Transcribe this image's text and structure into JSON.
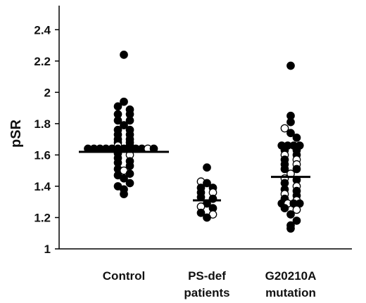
{
  "chart_data": {
    "type": "scatter",
    "title": "",
    "xlabel": "",
    "ylabel": "pSR",
    "ylim": [
      1,
      2.5
    ],
    "yticks": [
      "1",
      "1.2",
      "1.4",
      "1.6",
      "1.8",
      "2",
      "2.2",
      "2.4"
    ],
    "grid": false,
    "legend": "none",
    "groups": [
      {
        "label_lines": [
          "Control"
        ],
        "mean": 1.62,
        "points": [
          {
            "y": 2.24,
            "filled": true,
            "dx": 0
          },
          {
            "y": 1.94,
            "filled": true,
            "dx": 0
          },
          {
            "y": 1.91,
            "filled": true,
            "dx": -1
          },
          {
            "y": 1.89,
            "filled": true,
            "dx": 1
          },
          {
            "y": 1.86,
            "filled": true,
            "dx": -1
          },
          {
            "y": 1.86,
            "filled": true,
            "dx": 1
          },
          {
            "y": 1.82,
            "filled": true,
            "dx": -1
          },
          {
            "y": 1.82,
            "filled": true,
            "dx": 1
          },
          {
            "y": 1.79,
            "filled": true,
            "dx": 0
          },
          {
            "y": 1.76,
            "filled": true,
            "dx": -1
          },
          {
            "y": 1.76,
            "filled": true,
            "dx": 1
          },
          {
            "y": 1.73,
            "filled": true,
            "dx": -1
          },
          {
            "y": 1.73,
            "filled": true,
            "dx": 1
          },
          {
            "y": 1.7,
            "filled": true,
            "dx": -1
          },
          {
            "y": 1.7,
            "filled": true,
            "dx": 1
          },
          {
            "y": 1.68,
            "filled": true,
            "dx": -1
          },
          {
            "y": 1.68,
            "filled": true,
            "dx": 1
          },
          {
            "y": 1.66,
            "filled": false,
            "dx": -1
          },
          {
            "y": 1.66,
            "filled": true,
            "dx": 1
          },
          {
            "y": 1.64,
            "filled": true,
            "dx": -6
          },
          {
            "y": 1.64,
            "filled": true,
            "dx": -5
          },
          {
            "y": 1.64,
            "filled": true,
            "dx": -4
          },
          {
            "y": 1.64,
            "filled": true,
            "dx": -3
          },
          {
            "y": 1.64,
            "filled": true,
            "dx": -2
          },
          {
            "y": 1.64,
            "filled": true,
            "dx": -1
          },
          {
            "y": 1.64,
            "filled": true,
            "dx": 0
          },
          {
            "y": 1.64,
            "filled": true,
            "dx": 1
          },
          {
            "y": 1.64,
            "filled": true,
            "dx": 2
          },
          {
            "y": 1.64,
            "filled": true,
            "dx": 3
          },
          {
            "y": 1.64,
            "filled": false,
            "dx": 4
          },
          {
            "y": 1.64,
            "filled": true,
            "dx": 5
          },
          {
            "y": 1.61,
            "filled": true,
            "dx": -1
          },
          {
            "y": 1.6,
            "filled": false,
            "dx": 1
          },
          {
            "y": 1.58,
            "filled": true,
            "dx": -1
          },
          {
            "y": 1.56,
            "filled": true,
            "dx": 1
          },
          {
            "y": 1.55,
            "filled": true,
            "dx": -1
          },
          {
            "y": 1.53,
            "filled": true,
            "dx": 1
          },
          {
            "y": 1.51,
            "filled": true,
            "dx": -1
          },
          {
            "y": 1.5,
            "filled": false,
            "dx": 0
          },
          {
            "y": 1.48,
            "filled": true,
            "dx": 1
          },
          {
            "y": 1.47,
            "filled": true,
            "dx": -1
          },
          {
            "y": 1.45,
            "filled": true,
            "dx": 0
          },
          {
            "y": 1.42,
            "filled": true,
            "dx": 1
          },
          {
            "y": 1.4,
            "filled": true,
            "dx": -1
          },
          {
            "y": 1.38,
            "filled": true,
            "dx": 0
          },
          {
            "y": 1.35,
            "filled": true,
            "dx": 0
          }
        ]
      },
      {
        "label_lines": [
          "PS-def",
          "patients"
        ],
        "mean": 1.31,
        "points": [
          {
            "y": 1.52,
            "filled": true,
            "dx": 0
          },
          {
            "y": 1.43,
            "filled": false,
            "dx": -1
          },
          {
            "y": 1.42,
            "filled": true,
            "dx": 0
          },
          {
            "y": 1.39,
            "filled": true,
            "dx": -1
          },
          {
            "y": 1.39,
            "filled": true,
            "dx": 1
          },
          {
            "y": 1.36,
            "filled": true,
            "dx": -1
          },
          {
            "y": 1.36,
            "filled": false,
            "dx": 1
          },
          {
            "y": 1.33,
            "filled": true,
            "dx": -1
          },
          {
            "y": 1.32,
            "filled": true,
            "dx": 1
          },
          {
            "y": 1.29,
            "filled": true,
            "dx": 0
          },
          {
            "y": 1.27,
            "filled": false,
            "dx": -1
          },
          {
            "y": 1.26,
            "filled": true,
            "dx": 1
          },
          {
            "y": 1.23,
            "filled": true,
            "dx": -1
          },
          {
            "y": 1.22,
            "filled": false,
            "dx": 1
          },
          {
            "y": 1.2,
            "filled": true,
            "dx": 0
          }
        ]
      },
      {
        "label_lines": [
          "G20210A",
          "mutation"
        ],
        "mean": 1.46,
        "points": [
          {
            "y": 2.17,
            "filled": true,
            "dx": 0
          },
          {
            "y": 1.85,
            "filled": true,
            "dx": 0
          },
          {
            "y": 1.81,
            "filled": true,
            "dx": 0
          },
          {
            "y": 1.77,
            "filled": false,
            "dx": -1
          },
          {
            "y": 1.74,
            "filled": true,
            "dx": 0
          },
          {
            "y": 1.71,
            "filled": true,
            "dx": 1
          },
          {
            "y": 1.66,
            "filled": true,
            "dx": -1.5
          },
          {
            "y": 1.66,
            "filled": true,
            "dx": -0.5
          },
          {
            "y": 1.66,
            "filled": true,
            "dx": 0.5
          },
          {
            "y": 1.66,
            "filled": true,
            "dx": 1.5
          },
          {
            "y": 1.63,
            "filled": true,
            "dx": -1
          },
          {
            "y": 1.63,
            "filled": true,
            "dx": 1
          },
          {
            "y": 1.6,
            "filled": false,
            "dx": -1
          },
          {
            "y": 1.6,
            "filled": true,
            "dx": 1
          },
          {
            "y": 1.57,
            "filled": true,
            "dx": -1
          },
          {
            "y": 1.57,
            "filled": false,
            "dx": 1
          },
          {
            "y": 1.54,
            "filled": true,
            "dx": -1
          },
          {
            "y": 1.54,
            "filled": false,
            "dx": 1
          },
          {
            "y": 1.51,
            "filled": true,
            "dx": -1
          },
          {
            "y": 1.51,
            "filled": true,
            "dx": 1
          },
          {
            "y": 1.48,
            "filled": false,
            "dx": 0
          },
          {
            "y": 1.45,
            "filled": false,
            "dx": -1
          },
          {
            "y": 1.44,
            "filled": true,
            "dx": 1
          },
          {
            "y": 1.42,
            "filled": true,
            "dx": -1
          },
          {
            "y": 1.4,
            "filled": false,
            "dx": 1
          },
          {
            "y": 1.38,
            "filled": true,
            "dx": -1
          },
          {
            "y": 1.37,
            "filled": true,
            "dx": 1
          },
          {
            "y": 1.35,
            "filled": false,
            "dx": -1
          },
          {
            "y": 1.34,
            "filled": true,
            "dx": 1
          },
          {
            "y": 1.32,
            "filled": true,
            "dx": -1
          },
          {
            "y": 1.31,
            "filled": false,
            "dx": 1
          },
          {
            "y": 1.29,
            "filled": true,
            "dx": -1.5
          },
          {
            "y": 1.29,
            "filled": false,
            "dx": -0.5
          },
          {
            "y": 1.29,
            "filled": true,
            "dx": 0.5
          },
          {
            "y": 1.29,
            "filled": true,
            "dx": 1.5
          },
          {
            "y": 1.26,
            "filled": true,
            "dx": -1
          },
          {
            "y": 1.25,
            "filled": false,
            "dx": 1
          },
          {
            "y": 1.22,
            "filled": true,
            "dx": 0
          },
          {
            "y": 1.18,
            "filled": true,
            "dx": 1
          },
          {
            "y": 1.15,
            "filled": true,
            "dx": 0
          },
          {
            "y": 1.13,
            "filled": true,
            "dx": 0
          }
        ]
      }
    ]
  }
}
